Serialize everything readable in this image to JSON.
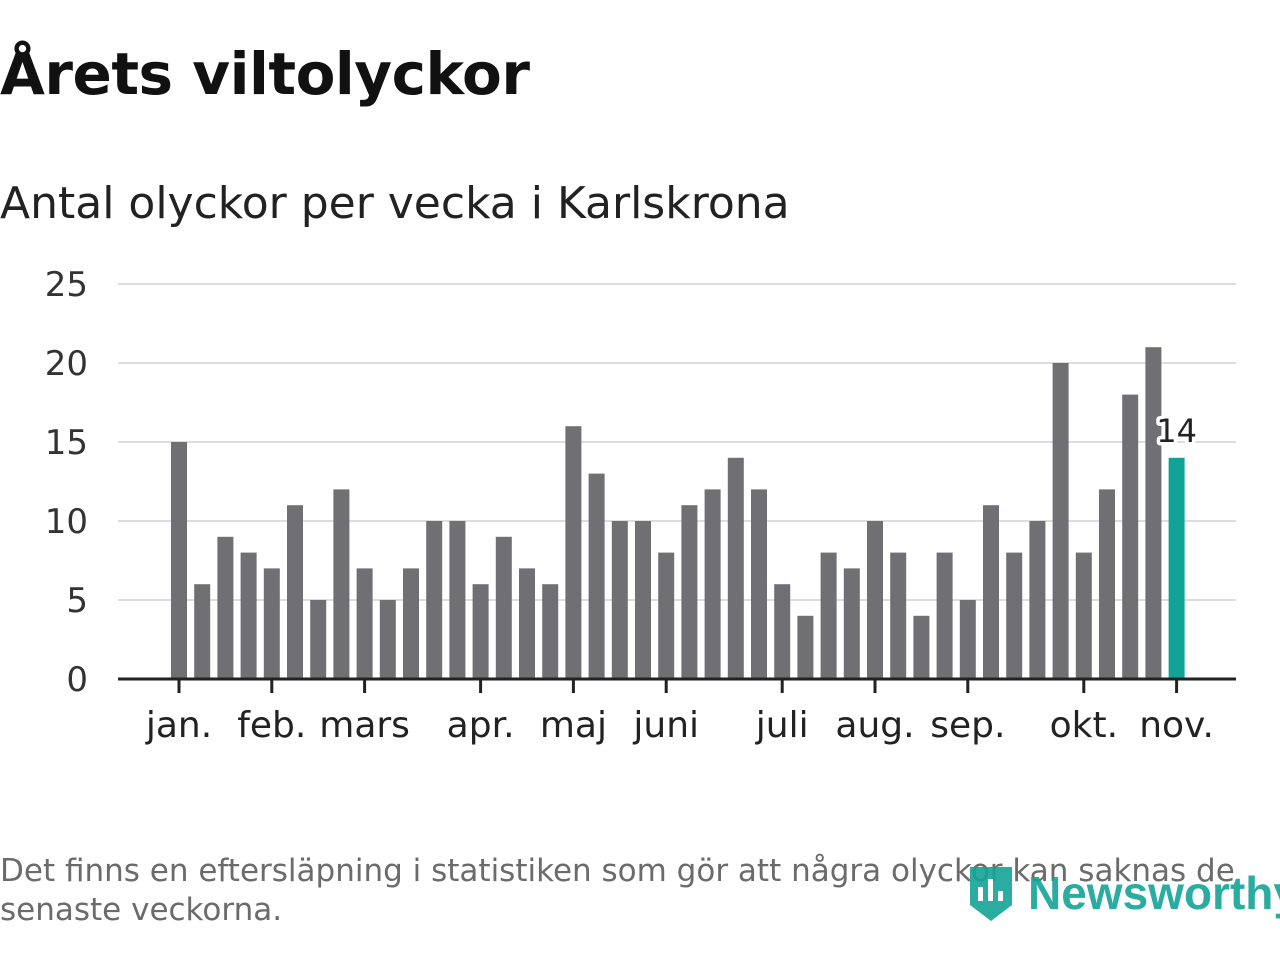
{
  "header": {
    "title": "Årets viltolyckor",
    "subtitle": "Antal olyckor per vecka i Karlskrona"
  },
  "footer": {
    "note": "Det finns en eftersläpning i statistiken som gör att några olyckor kan saknas de senaste veckorna.",
    "brand": "Newsworthy"
  },
  "colors": {
    "bar": "#6f6f74",
    "highlight": "#12a396",
    "grid": "#dddddd",
    "axis": "#222222"
  },
  "chart_data": {
    "type": "bar",
    "title": "Antal olyckor per vecka i Karlskrona",
    "xlabel": "",
    "ylabel": "",
    "ylim": [
      0,
      25
    ],
    "yticks": [
      "0",
      "5",
      "10",
      "15",
      "20",
      "25"
    ],
    "grid": true,
    "values": [
      15,
      6,
      9,
      8,
      7,
      11,
      5,
      12,
      7,
      5,
      7,
      10,
      10,
      6,
      9,
      7,
      6,
      16,
      13,
      10,
      10,
      8,
      11,
      12,
      14,
      12,
      6,
      4,
      8,
      7,
      10,
      8,
      4,
      8,
      5,
      11,
      8,
      10,
      20,
      8,
      12,
      18,
      21,
      14
    ],
    "month_labels": [
      {
        "label": "jan.",
        "bar": 0
      },
      {
        "label": "feb.",
        "bar": 4
      },
      {
        "label": "mars",
        "bar": 8
      },
      {
        "label": "apr.",
        "bar": 13
      },
      {
        "label": "maj",
        "bar": 17
      },
      {
        "label": "juni",
        "bar": 21
      },
      {
        "label": "juli",
        "bar": 26
      },
      {
        "label": "aug.",
        "bar": 30
      },
      {
        "label": "sep.",
        "bar": 34
      },
      {
        "label": "okt.",
        "bar": 39
      },
      {
        "label": "nov.",
        "bar": 43
      }
    ],
    "highlight": {
      "bar": 43,
      "value": 14,
      "label": "14"
    }
  }
}
